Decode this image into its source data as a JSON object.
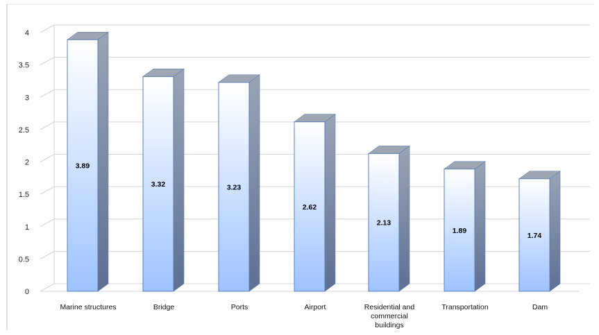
{
  "chart_data": {
    "type": "bar",
    "style": "3d-column",
    "title": "",
    "xlabel": "",
    "ylabel": "",
    "categories": [
      [
        "Marine structures"
      ],
      [
        "Bridge"
      ],
      [
        "Ports"
      ],
      [
        "Airport"
      ],
      [
        "Residential and",
        "commercial",
        "buildings"
      ],
      [
        "Transportation"
      ],
      [
        "Dam"
      ]
    ],
    "values": [
      3.89,
      3.32,
      3.23,
      2.62,
      2.13,
      1.89,
      1.74
    ],
    "data_labels": [
      "3.89",
      "3.32",
      "3.23",
      "2.62",
      "2.13",
      "1.89",
      "1.74"
    ],
    "ylim": [
      0,
      4
    ],
    "yticks": [
      "0",
      "0.5",
      "1",
      "1.5",
      "2",
      "2.5",
      "3",
      "3.5",
      "4"
    ],
    "grid": true,
    "legend": "none"
  },
  "colors": {
    "bar_top": "#ffffff",
    "bar_bottom": "#9dc3ff",
    "bar_side_light": "#9aa4b6",
    "bar_side_dark": "#5d6f93",
    "bar_cap": "#9ea6b3",
    "bar_outline": "#5b7fb4",
    "grid": "#d4d4d4",
    "axis": "#bfbfbf"
  }
}
